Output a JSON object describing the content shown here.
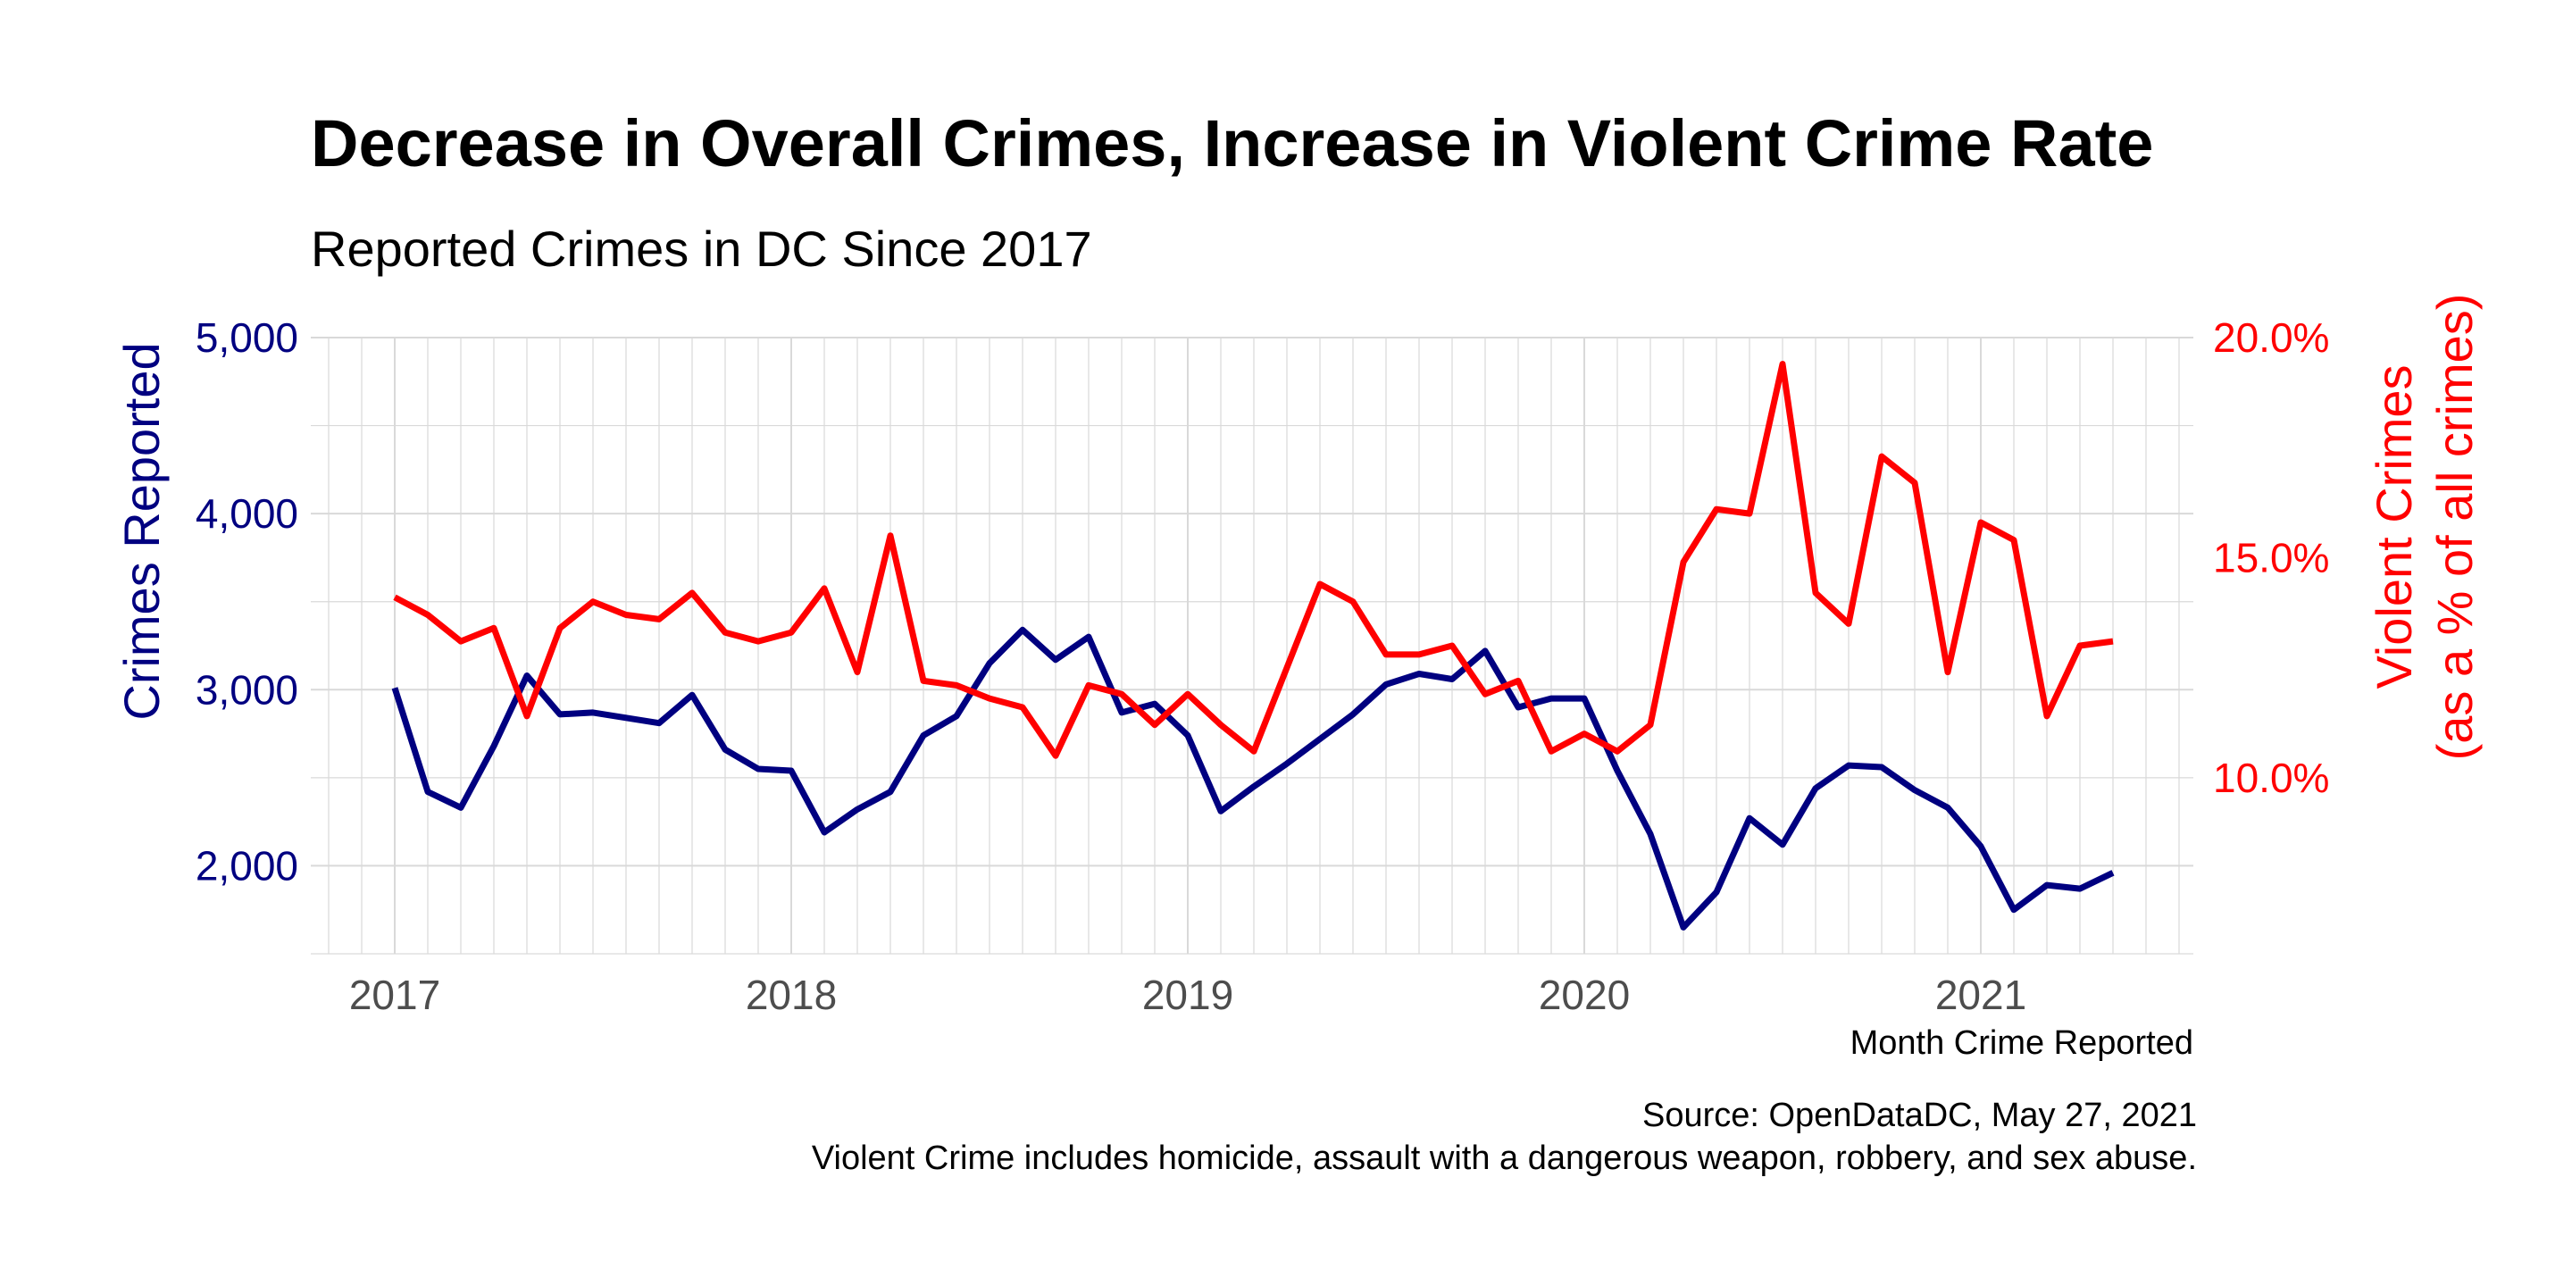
{
  "title": "Decrease in Overall Crimes, Increase in Violent Crime Rate",
  "subtitle": "Reported Crimes in DC Since 2017",
  "captions": [
    "Source: OpenDataDC, May 27, 2021",
    "Violent Crime includes homicide, assault with a dangerous weapon, robbery, and sex abuse."
  ],
  "colors": {
    "crimes": "#000080",
    "violent": "#ff0000",
    "grid": "#d9d9d9",
    "tick_text": "#4d4d4d"
  },
  "chart_data": {
    "type": "line",
    "title": "Decrease in Overall Crimes, Increase in Violent Crime Rate",
    "subtitle": "Reported Crimes in DC Since 2017",
    "xlabel": "Month Crime Reported",
    "ylabel_left": "Crimes Reported",
    "ylabel_right": [
      "Violent Crimes",
      "(as a % of all crimes)"
    ],
    "x_ticks": [
      "2017",
      "2018",
      "2019",
      "2020",
      "2021"
    ],
    "y_left_ticks": [
      "2,000",
      "3,000",
      "4,000",
      "5,000"
    ],
    "y_right_ticks": [
      "10.0%",
      "15.0%",
      "20.0%"
    ],
    "y_left_range": [
      1500,
      5000
    ],
    "y_right_range": [
      0.06,
      0.2
    ],
    "grid": true,
    "x": [
      "2017-01",
      "2017-02",
      "2017-03",
      "2017-04",
      "2017-05",
      "2017-06",
      "2017-07",
      "2017-08",
      "2017-09",
      "2017-10",
      "2017-11",
      "2017-12",
      "2018-01",
      "2018-02",
      "2018-03",
      "2018-04",
      "2018-05",
      "2018-06",
      "2018-07",
      "2018-08",
      "2018-09",
      "2018-10",
      "2018-11",
      "2018-12",
      "2019-01",
      "2019-02",
      "2019-03",
      "2019-04",
      "2019-05",
      "2019-06",
      "2019-07",
      "2019-08",
      "2019-09",
      "2019-10",
      "2019-11",
      "2019-12",
      "2020-01",
      "2020-02",
      "2020-03",
      "2020-04",
      "2020-05",
      "2020-06",
      "2020-07",
      "2020-08",
      "2020-09",
      "2020-10",
      "2020-11",
      "2020-12",
      "2021-01",
      "2021-02",
      "2021-03",
      "2021-04",
      "2021-05"
    ],
    "series": [
      {
        "name": "Crimes Reported",
        "axis": "left",
        "values": [
          3010,
          2420,
          2330,
          2680,
          3080,
          2860,
          2870,
          2840,
          2810,
          2970,
          2660,
          2550,
          2540,
          2190,
          2320,
          2420,
          2740,
          2850,
          3150,
          3340,
          3170,
          3300,
          2870,
          2920,
          2740,
          2310,
          2450,
          2580,
          2720,
          2860,
          3030,
          3090,
          3060,
          3220,
          2900,
          2950,
          2950,
          2540,
          2180,
          1650,
          1850,
          2270,
          2120,
          2440,
          2570,
          2560,
          2430,
          2330,
          2110,
          1750,
          1890,
          1870,
          1960
        ]
      },
      {
        "name": "Violent Crimes (as a % of all crimes)",
        "axis": "right",
        "values": [
          0.141,
          0.137,
          0.131,
          0.134,
          0.114,
          0.134,
          0.14,
          0.137,
          0.136,
          0.142,
          0.133,
          0.131,
          0.133,
          0.143,
          0.124,
          0.155,
          0.122,
          0.121,
          0.118,
          0.116,
          0.105,
          0.121,
          0.119,
          0.112,
          0.119,
          0.112,
          0.106,
          0.125,
          0.144,
          0.14,
          0.128,
          0.128,
          0.13,
          0.119,
          0.122,
          0.106,
          0.11,
          0.106,
          0.112,
          0.149,
          0.161,
          0.16,
          0.194,
          0.142,
          0.135,
          0.173,
          0.167,
          0.124,
          0.158,
          0.154,
          0.114,
          0.13,
          0.131
        ]
      }
    ]
  }
}
